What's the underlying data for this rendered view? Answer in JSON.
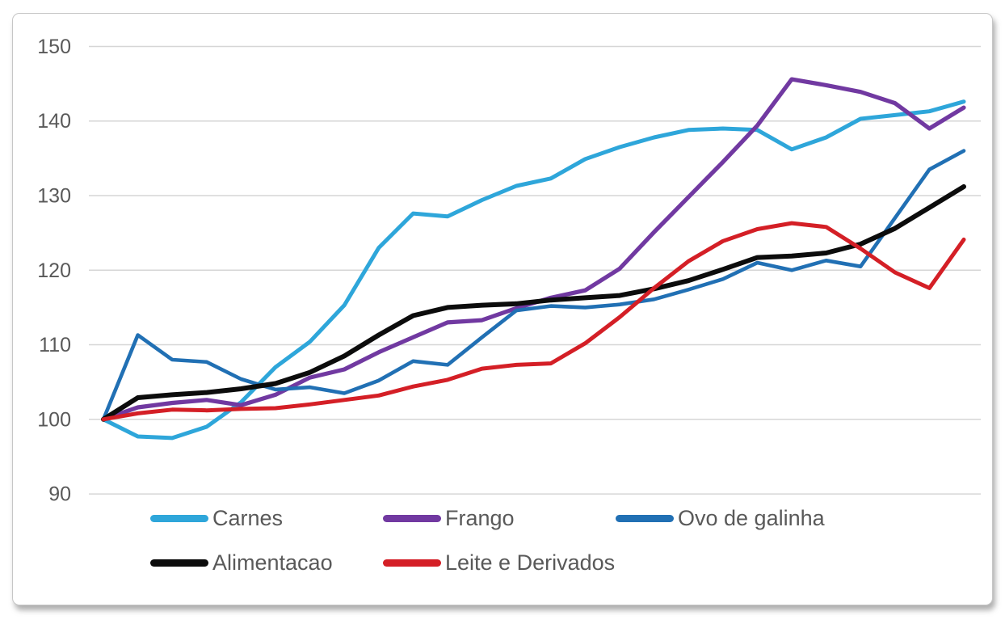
{
  "chart_data": {
    "type": "line",
    "title": "",
    "xlabel": "",
    "ylabel": "",
    "x_axis": {
      "labels_visible": false,
      "num_points": 26
    },
    "y_axis": {
      "min": 90,
      "max": 150,
      "step": 10,
      "tick_labels": [
        "150",
        "140",
        "130",
        "120",
        "110",
        "100",
        "90"
      ]
    },
    "grid": "horizontal",
    "gridline_color": "#d6d6d6",
    "axis_text_color": "#595959",
    "legend_position": "bottom",
    "series": [
      {
        "name": "Carnes",
        "color": "#2ea6da",
        "values": [
          100,
          97.7,
          97.5,
          99.0,
          102.3,
          107.0,
          110.4,
          115.3,
          123.0,
          127.6,
          127.2,
          129.4,
          131.3,
          132.3,
          134.9,
          136.5,
          137.8,
          138.8,
          139.0,
          138.8,
          136.2,
          137.8,
          140.3,
          140.8,
          141.3,
          142.6
        ]
      },
      {
        "name": "Frango",
        "color": "#7139a1",
        "values": [
          100,
          101.6,
          102.2,
          102.6,
          101.9,
          103.3,
          105.6,
          106.7,
          109.0,
          111.0,
          113.0,
          113.3,
          114.9,
          116.3,
          117.3,
          120.2,
          125.1,
          129.8,
          134.5,
          139.4,
          145.6,
          144.8,
          143.9,
          142.4,
          139.0,
          141.8
        ]
      },
      {
        "name": "Ovo de galinha",
        "color": "#2170b4",
        "values": [
          100,
          111.3,
          108.0,
          107.7,
          105.4,
          104.0,
          104.3,
          103.5,
          105.2,
          107.8,
          107.3,
          111.0,
          114.6,
          115.2,
          115.0,
          115.4,
          116.1,
          117.4,
          118.8,
          121.0,
          120.0,
          121.3,
          120.5,
          127.0,
          133.5,
          136.0
        ]
      },
      {
        "name": "Alimentacao",
        "color": "#0c0c0c",
        "values": [
          100,
          102.9,
          103.3,
          103.6,
          104.1,
          104.8,
          106.3,
          108.5,
          111.3,
          113.9,
          115.0,
          115.3,
          115.5,
          116.0,
          116.3,
          116.6,
          117.5,
          118.6,
          120.1,
          121.7,
          121.9,
          122.3,
          123.5,
          125.6,
          128.4,
          131.2
        ]
      },
      {
        "name": "Leite e Derivados",
        "color": "#d41f26",
        "values": [
          100,
          100.8,
          101.3,
          101.2,
          101.4,
          101.5,
          102.0,
          102.6,
          103.2,
          104.4,
          105.3,
          106.8,
          107.3,
          107.5,
          110.2,
          113.7,
          117.6,
          121.2,
          123.9,
          125.5,
          126.3,
          125.8,
          122.9,
          119.7,
          117.6,
          124.1
        ]
      }
    ]
  }
}
